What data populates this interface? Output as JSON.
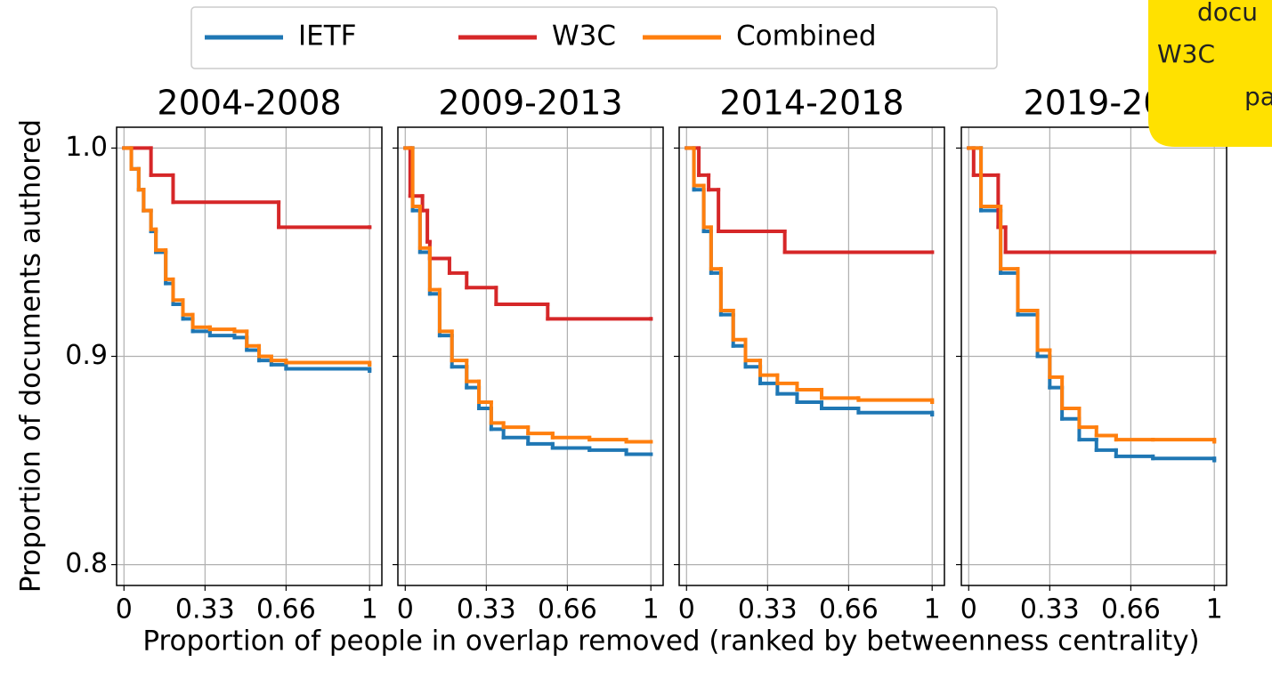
{
  "legend_position": "upper center",
  "ylabel": "Proportion of documents authored",
  "xlabel": "Proportion of people in overlap removed (ranked by betweenness centrality)",
  "callout": [
    "docu",
    "W3C",
    "pa"
  ],
  "chart_data": [
    {
      "type": "line",
      "step": "post",
      "title": "2004-2008",
      "grid": true,
      "xlim": [
        -0.03,
        1.05
      ],
      "xticks": [
        0,
        0.33,
        0.66,
        1
      ],
      "ylim": [
        0.79,
        1.01
      ],
      "yticks": [
        0.8,
        0.9,
        {
          "value": 1,
          "label": "1.0"
        }
      ],
      "series": [
        {
          "name": "IETF",
          "color": "#1f77b4",
          "x": [
            0,
            0.03,
            0.06,
            0.08,
            0.11,
            0.13,
            0.17,
            0.2,
            0.24,
            0.28,
            0.35,
            0.45,
            0.5,
            0.55,
            0.6,
            0.66,
            1
          ],
          "values": [
            1,
            0.99,
            0.98,
            0.97,
            0.96,
            0.95,
            0.935,
            0.925,
            0.918,
            0.912,
            0.91,
            0.909,
            0.903,
            0.898,
            0.896,
            0.894,
            0.893
          ]
        },
        {
          "name": "W3C",
          "color": "#d62728",
          "x": [
            0,
            0.11,
            0.2,
            0.63,
            1
          ],
          "values": [
            1,
            0.987,
            0.974,
            0.962,
            0.962
          ]
        },
        {
          "name": "Combined",
          "color": "#ff7f0e",
          "x": [
            0,
            0.03,
            0.06,
            0.08,
            0.11,
            0.13,
            0.17,
            0.2,
            0.24,
            0.28,
            0.35,
            0.45,
            0.5,
            0.55,
            0.6,
            0.66,
            1
          ],
          "values": [
            1,
            0.99,
            0.98,
            0.97,
            0.961,
            0.951,
            0.937,
            0.927,
            0.92,
            0.914,
            0.913,
            0.912,
            0.905,
            0.9,
            0.898,
            0.897,
            0.896
          ]
        }
      ]
    },
    {
      "type": "line",
      "step": "post",
      "title": "2009-2013",
      "grid": true,
      "xlim": [
        -0.03,
        1.05
      ],
      "xticks": [
        0,
        0.33,
        0.66,
        1
      ],
      "ylim": [
        0.79,
        1.01
      ],
      "yticks": [
        0.8,
        0.9,
        {
          "value": 1,
          "label": "1.0"
        }
      ],
      "series": [
        {
          "name": "IETF",
          "color": "#1f77b4",
          "x": [
            0,
            0.03,
            0.06,
            0.1,
            0.14,
            0.19,
            0.25,
            0.3,
            0.35,
            0.4,
            0.5,
            0.6,
            0.75,
            0.9,
            1
          ],
          "values": [
            1,
            0.97,
            0.95,
            0.93,
            0.91,
            0.895,
            0.885,
            0.875,
            0.865,
            0.861,
            0.858,
            0.856,
            0.855,
            0.853,
            0.853
          ]
        },
        {
          "name": "W3C",
          "color": "#d62728",
          "x": [
            0,
            0.02,
            0.07,
            0.09,
            0.1,
            0.18,
            0.25,
            0.37,
            0.58,
            1
          ],
          "values": [
            1,
            0.977,
            0.97,
            0.955,
            0.947,
            0.94,
            0.933,
            0.925,
            0.918,
            0.918
          ]
        },
        {
          "name": "Combined",
          "color": "#ff7f0e",
          "x": [
            0,
            0.03,
            0.06,
            0.1,
            0.14,
            0.19,
            0.25,
            0.3,
            0.35,
            0.4,
            0.5,
            0.6,
            0.75,
            0.9,
            1
          ],
          "values": [
            1,
            0.972,
            0.952,
            0.932,
            0.912,
            0.898,
            0.888,
            0.878,
            0.868,
            0.866,
            0.863,
            0.861,
            0.86,
            0.859,
            0.859
          ]
        }
      ]
    },
    {
      "type": "line",
      "step": "post",
      "title": "2014-2018",
      "grid": true,
      "xlim": [
        -0.03,
        1.05
      ],
      "xticks": [
        0,
        0.33,
        0.66,
        1
      ],
      "ylim": [
        0.79,
        1.01
      ],
      "yticks": [
        0.8,
        0.9,
        {
          "value": 1,
          "label": "1.0"
        }
      ],
      "series": [
        {
          "name": "IETF",
          "color": "#1f77b4",
          "x": [
            0,
            0.03,
            0.07,
            0.1,
            0.14,
            0.19,
            0.24,
            0.3,
            0.37,
            0.45,
            0.55,
            0.7,
            1
          ],
          "values": [
            1,
            0.98,
            0.96,
            0.94,
            0.92,
            0.905,
            0.895,
            0.887,
            0.882,
            0.878,
            0.875,
            0.873,
            0.872
          ]
        },
        {
          "name": "W3C",
          "color": "#d62728",
          "x": [
            0,
            0.05,
            0.09,
            0.13,
            0.4,
            1
          ],
          "values": [
            1,
            0.987,
            0.98,
            0.96,
            0.95,
            0.95
          ]
        },
        {
          "name": "Combined",
          "color": "#ff7f0e",
          "x": [
            0,
            0.03,
            0.07,
            0.1,
            0.14,
            0.19,
            0.24,
            0.3,
            0.37,
            0.45,
            0.55,
            0.7,
            1
          ],
          "values": [
            1,
            0.982,
            0.962,
            0.942,
            0.922,
            0.908,
            0.898,
            0.891,
            0.887,
            0.884,
            0.88,
            0.879,
            0.878
          ]
        }
      ]
    },
    {
      "type": "line",
      "step": "post",
      "title": "2019-20",
      "grid": true,
      "xlim": [
        -0.03,
        1.05
      ],
      "xticks": [
        0,
        0.33,
        0.66,
        1
      ],
      "ylim": [
        0.79,
        1.01
      ],
      "yticks": [
        0.8,
        0.9,
        {
          "value": 1,
          "label": "1.0"
        }
      ],
      "series": [
        {
          "name": "IETF",
          "color": "#1f77b4",
          "x": [
            0,
            0.05,
            0.13,
            0.2,
            0.28,
            0.33,
            0.38,
            0.45,
            0.52,
            0.6,
            0.75,
            1
          ],
          "values": [
            1,
            0.97,
            0.94,
            0.92,
            0.9,
            0.885,
            0.87,
            0.86,
            0.855,
            0.852,
            0.851,
            0.85
          ]
        },
        {
          "name": "W3C",
          "color": "#d62728",
          "x": [
            0,
            0.02,
            0.12,
            0.15,
            1
          ],
          "values": [
            1,
            0.987,
            0.962,
            0.95,
            0.95
          ]
        },
        {
          "name": "Combined",
          "color": "#ff7f0e",
          "x": [
            0,
            0.05,
            0.13,
            0.2,
            0.28,
            0.33,
            0.38,
            0.45,
            0.52,
            0.6,
            0.75,
            1
          ],
          "values": [
            1,
            0.972,
            0.942,
            0.922,
            0.903,
            0.89,
            0.875,
            0.866,
            0.862,
            0.86,
            0.86,
            0.859
          ]
        }
      ]
    }
  ]
}
